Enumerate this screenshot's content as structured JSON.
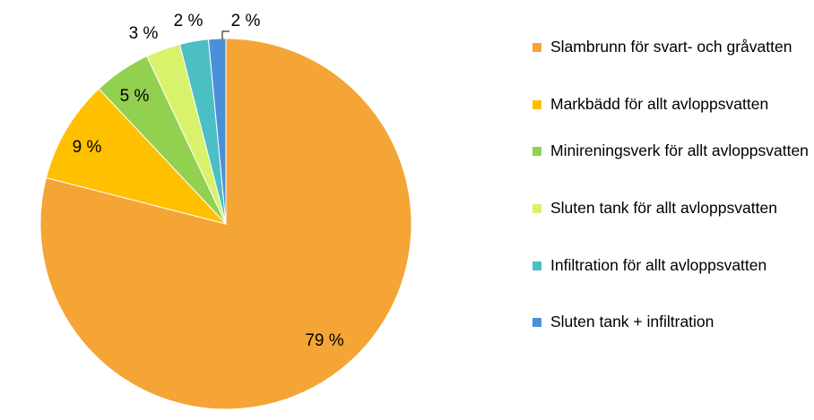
{
  "chart_data": {
    "type": "pie",
    "legend_position": "right",
    "slices": [
      {
        "label": "Slambrunn för svart- och gråvatten",
        "value": 79,
        "display": "79 %",
        "color": "#F4A535"
      },
      {
        "label": "Markbädd för allt avloppsvatten",
        "value": 9,
        "display": "9 %",
        "color": "#FFC000"
      },
      {
        "label": "Minireningsverk för allt avloppsvatten",
        "value": 5,
        "display": "5 %",
        "color": "#92D050"
      },
      {
        "label": "Sluten tank för allt avloppsvatten",
        "value": 3,
        "display": "3 %",
        "color": "#D9F26B"
      },
      {
        "label": "Infiltration för allt avloppsvatten",
        "value": 2.5,
        "display": "2 %",
        "color": "#4BBFC4"
      },
      {
        "label": "Sluten tank + infiltration",
        "value": 1.5,
        "display": "2 %",
        "color": "#4A90D9"
      }
    ]
  },
  "legend": {
    "items": [
      {
        "label": "Slambrunn för svart- och gråvatten",
        "color": "#F4A535"
      },
      {
        "label": "Markbädd för allt avloppsvatten",
        "color": "#FFC000"
      },
      {
        "label": "Minireningsverk för allt avloppsvatten",
        "color": "#92D050"
      },
      {
        "label": "Sluten tank för allt avloppsvatten",
        "color": "#D9F26B"
      },
      {
        "label": "Infiltration för allt avloppsvatten",
        "color": "#4BBFC4"
      },
      {
        "label": "Sluten tank + infiltration",
        "color": "#4A90D9"
      }
    ]
  }
}
